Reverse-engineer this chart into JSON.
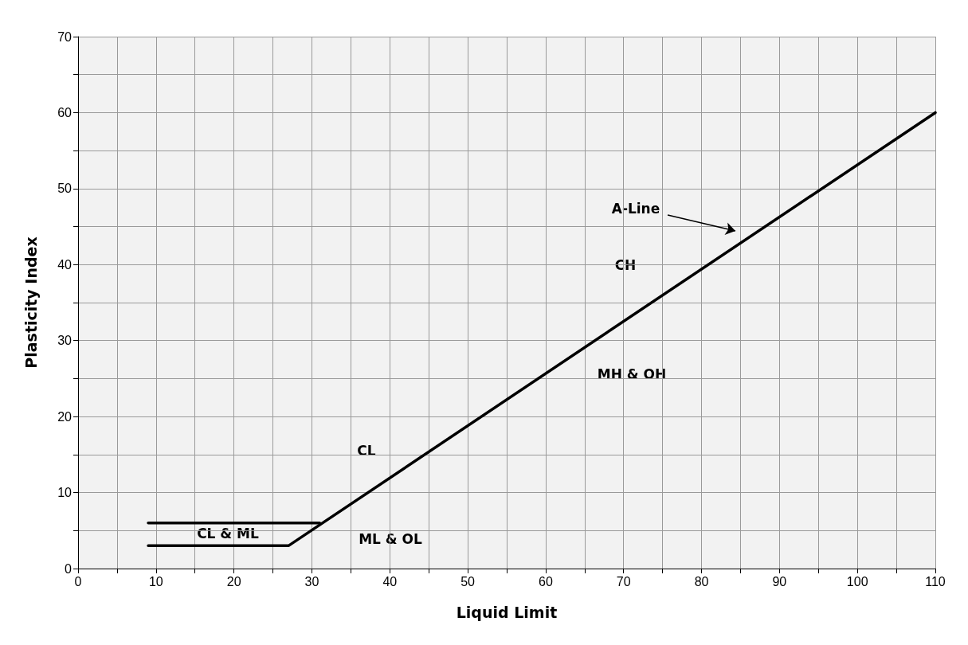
{
  "chart_data": {
    "type": "line",
    "xlabel": "Liquid Limit",
    "ylabel": "Plasticity Index",
    "xlim": [
      0,
      110
    ],
    "ylim": [
      0,
      70
    ],
    "xticks": [
      0,
      {
        "value": 5,
        "label": null
      },
      10,
      {
        "value": 15,
        "label": null
      },
      20,
      {
        "value": 25,
        "label": null
      },
      30,
      {
        "value": 35,
        "label": null
      },
      40,
      {
        "value": 45,
        "label": null
      },
      50,
      {
        "value": 55,
        "label": null
      },
      60,
      {
        "value": 65,
        "label": null
      },
      70,
      {
        "value": 75,
        "label": null
      },
      80,
      {
        "value": 85,
        "label": null
      },
      90,
      {
        "value": 95,
        "label": null
      },
      100,
      {
        "value": 105,
        "label": null
      },
      110
    ],
    "yticks": [
      0,
      {
        "value": 5,
        "label": null
      },
      10,
      {
        "value": 15,
        "label": null
      },
      20,
      {
        "value": 25,
        "label": null
      },
      30,
      {
        "value": 35,
        "label": null
      },
      40,
      {
        "value": 45,
        "label": null
      },
      50,
      {
        "value": 55,
        "label": null
      },
      60,
      {
        "value": 65,
        "label": null
      },
      70
    ],
    "grid": true,
    "marker": "none",
    "line_style": "solid",
    "series": [
      {
        "color": "#000000",
        "x": [
          9,
          27,
          110
        ],
        "values": [
          3,
          3,
          60
        ]
      },
      {
        "color": "#000000",
        "x": [
          9,
          31
        ],
        "values": [
          6,
          6
        ]
      }
    ],
    "annotations": [
      "A-Line",
      "CH",
      "MH & OH",
      "CL",
      "ML & OL",
      "CL & ML"
    ]
  }
}
